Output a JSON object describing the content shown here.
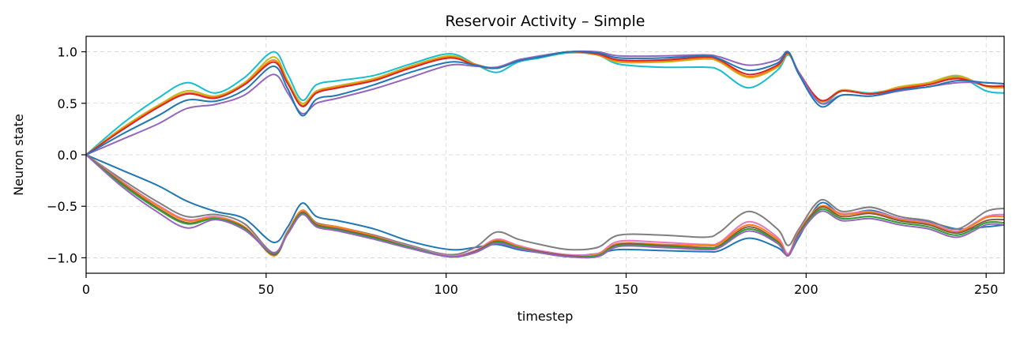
{
  "chart_data": {
    "type": "line",
    "title": "Reservoir Activity – Simple",
    "xlabel": "timestep",
    "ylabel": "Neuron state",
    "xlim": [
      0,
      255
    ],
    "ylim": [
      -1.15,
      1.15
    ],
    "x_ticks": [
      0,
      50,
      100,
      150,
      200,
      250
    ],
    "y_ticks": [
      1.0,
      0.5,
      0.0,
      -0.5,
      -1.0
    ],
    "x_tick_labels": [
      "0",
      "50",
      "100",
      "150",
      "200",
      "250"
    ],
    "y_tick_labels": [
      "1.0",
      "0.5",
      "0.0",
      "−0.5",
      "−1.0"
    ],
    "grid": true,
    "legend": "none",
    "x": [
      0,
      10,
      20,
      28,
      36,
      44,
      52,
      56,
      60,
      64,
      70,
      80,
      90,
      101,
      108,
      114,
      120,
      126,
      134,
      142,
      148,
      160,
      172,
      176,
      184,
      192,
      195,
      198,
      204,
      210,
      218,
      226,
      234,
      242,
      250,
      255
    ],
    "series": [
      {
        "color": "#17becf",
        "values": [
          0.0,
          0.3,
          0.55,
          0.7,
          0.6,
          0.75,
          1.0,
          0.78,
          0.53,
          0.68,
          0.72,
          0.77,
          0.88,
          0.98,
          0.88,
          0.8,
          0.9,
          0.94,
          0.99,
          0.97,
          0.88,
          0.85,
          0.85,
          0.82,
          0.65,
          0.82,
          0.97,
          0.8,
          0.5,
          0.62,
          0.6,
          0.65,
          0.7,
          0.76,
          0.62,
          0.6
        ]
      },
      {
        "color": "#bcbd22",
        "values": [
          0.0,
          0.26,
          0.48,
          0.62,
          0.57,
          0.7,
          0.95,
          0.72,
          0.5,
          0.62,
          0.67,
          0.74,
          0.86,
          0.96,
          0.88,
          0.84,
          0.92,
          0.95,
          1.0,
          0.97,
          0.9,
          0.9,
          0.93,
          0.9,
          0.75,
          0.85,
          0.98,
          0.8,
          0.52,
          0.63,
          0.59,
          0.66,
          0.7,
          0.77,
          0.66,
          0.65
        ]
      },
      {
        "color": "#ff7f0e",
        "values": [
          0.0,
          0.25,
          0.47,
          0.6,
          0.56,
          0.69,
          0.92,
          0.7,
          0.48,
          0.61,
          0.66,
          0.73,
          0.85,
          0.95,
          0.88,
          0.84,
          0.92,
          0.95,
          1.0,
          0.97,
          0.91,
          0.91,
          0.94,
          0.91,
          0.76,
          0.86,
          0.98,
          0.8,
          0.52,
          0.62,
          0.59,
          0.65,
          0.69,
          0.75,
          0.67,
          0.66
        ]
      },
      {
        "color": "#d62728",
        "values": [
          0.0,
          0.24,
          0.46,
          0.59,
          0.55,
          0.68,
          0.9,
          0.69,
          0.47,
          0.6,
          0.65,
          0.72,
          0.84,
          0.94,
          0.87,
          0.84,
          0.92,
          0.95,
          1.0,
          0.98,
          0.92,
          0.92,
          0.95,
          0.92,
          0.78,
          0.87,
          0.99,
          0.8,
          0.53,
          0.62,
          0.59,
          0.64,
          0.68,
          0.74,
          0.67,
          0.67
        ]
      },
      {
        "color": "#9467bd",
        "values": [
          0.0,
          0.15,
          0.3,
          0.45,
          0.49,
          0.58,
          0.78,
          0.6,
          0.4,
          0.5,
          0.55,
          0.64,
          0.75,
          0.87,
          0.86,
          0.85,
          0.92,
          0.96,
          1.0,
          1.0,
          0.96,
          0.96,
          0.97,
          0.95,
          0.87,
          0.92,
          1.0,
          0.8,
          0.5,
          0.58,
          0.57,
          0.62,
          0.66,
          0.7,
          0.7,
          0.69
        ]
      },
      {
        "color": "#1f77b4",
        "values": [
          0.0,
          0.2,
          0.38,
          0.53,
          0.52,
          0.63,
          0.86,
          0.64,
          0.38,
          0.54,
          0.58,
          0.68,
          0.8,
          0.9,
          0.87,
          0.84,
          0.91,
          0.95,
          1.0,
          0.99,
          0.94,
          0.94,
          0.96,
          0.93,
          0.82,
          0.89,
          1.0,
          0.78,
          0.47,
          0.58,
          0.57,
          0.63,
          0.66,
          0.72,
          0.7,
          0.69
        ]
      },
      {
        "color": "#1f77b4",
        "values": [
          0.0,
          -0.15,
          -0.3,
          -0.45,
          -0.55,
          -0.62,
          -0.85,
          -0.7,
          -0.47,
          -0.6,
          -0.64,
          -0.72,
          -0.84,
          -0.92,
          -0.9,
          -0.87,
          -0.92,
          -0.95,
          -0.98,
          -0.96,
          -0.92,
          -0.93,
          -0.94,
          -0.93,
          -0.81,
          -0.9,
          -0.97,
          -0.8,
          -0.47,
          -0.58,
          -0.54,
          -0.62,
          -0.65,
          -0.72,
          -0.7,
          -0.68
        ]
      },
      {
        "color": "#7f7f7f",
        "values": [
          0.0,
          -0.24,
          -0.46,
          -0.6,
          -0.58,
          -0.67,
          -0.95,
          -0.74,
          -0.54,
          -0.66,
          -0.7,
          -0.78,
          -0.88,
          -0.97,
          -0.9,
          -0.75,
          -0.82,
          -0.87,
          -0.92,
          -0.9,
          -0.78,
          -0.78,
          -0.8,
          -0.75,
          -0.55,
          -0.72,
          -0.88,
          -0.72,
          -0.44,
          -0.55,
          -0.51,
          -0.6,
          -0.64,
          -0.72,
          -0.55,
          -0.52
        ]
      },
      {
        "color": "#e377c2",
        "values": [
          0.0,
          -0.26,
          -0.49,
          -0.63,
          -0.6,
          -0.7,
          -0.96,
          -0.74,
          -0.55,
          -0.67,
          -0.71,
          -0.79,
          -0.89,
          -0.98,
          -0.93,
          -0.82,
          -0.88,
          -0.93,
          -0.97,
          -0.96,
          -0.84,
          -0.85,
          -0.87,
          -0.85,
          -0.65,
          -0.8,
          -0.96,
          -0.74,
          -0.5,
          -0.57,
          -0.55,
          -0.62,
          -0.66,
          -0.74,
          -0.6,
          -0.58
        ]
      },
      {
        "color": "#ff7f0e",
        "values": [
          0.0,
          -0.27,
          -0.5,
          -0.64,
          -0.61,
          -0.7,
          -0.98,
          -0.75,
          -0.54,
          -0.67,
          -0.7,
          -0.79,
          -0.9,
          -0.99,
          -0.94,
          -0.83,
          -0.89,
          -0.94,
          -0.98,
          -0.97,
          -0.86,
          -0.87,
          -0.88,
          -0.86,
          -0.68,
          -0.82,
          -0.98,
          -0.75,
          -0.5,
          -0.58,
          -0.56,
          -0.63,
          -0.67,
          -0.75,
          -0.61,
          -0.6
        ]
      },
      {
        "color": "#8c564b",
        "values": [
          0.0,
          -0.28,
          -0.52,
          -0.66,
          -0.62,
          -0.71,
          -0.97,
          -0.76,
          -0.56,
          -0.68,
          -0.72,
          -0.8,
          -0.9,
          -0.99,
          -0.94,
          -0.84,
          -0.9,
          -0.94,
          -0.98,
          -0.98,
          -0.87,
          -0.88,
          -0.9,
          -0.88,
          -0.7,
          -0.84,
          -0.98,
          -0.76,
          -0.51,
          -0.6,
          -0.57,
          -0.64,
          -0.68,
          -0.76,
          -0.64,
          -0.63
        ]
      },
      {
        "color": "#2ca02c",
        "values": [
          0.0,
          -0.29,
          -0.53,
          -0.67,
          -0.62,
          -0.72,
          -0.96,
          -0.76,
          -0.57,
          -0.69,
          -0.73,
          -0.81,
          -0.9,
          -0.99,
          -0.95,
          -0.85,
          -0.9,
          -0.95,
          -0.99,
          -0.98,
          -0.88,
          -0.89,
          -0.91,
          -0.89,
          -0.72,
          -0.85,
          -0.98,
          -0.77,
          -0.53,
          -0.62,
          -0.6,
          -0.66,
          -0.7,
          -0.78,
          -0.66,
          -0.66
        ]
      },
      {
        "color": "#9467bd",
        "values": [
          0.0,
          -0.31,
          -0.56,
          -0.71,
          -0.63,
          -0.73,
          -0.95,
          -0.77,
          -0.58,
          -0.7,
          -0.74,
          -0.82,
          -0.91,
          -0.99,
          -0.95,
          -0.86,
          -0.91,
          -0.95,
          -0.99,
          -0.99,
          -0.89,
          -0.9,
          -0.92,
          -0.9,
          -0.74,
          -0.86,
          -0.98,
          -0.78,
          -0.55,
          -0.64,
          -0.62,
          -0.68,
          -0.72,
          -0.8,
          -0.68,
          -0.68
        ]
      }
    ]
  }
}
